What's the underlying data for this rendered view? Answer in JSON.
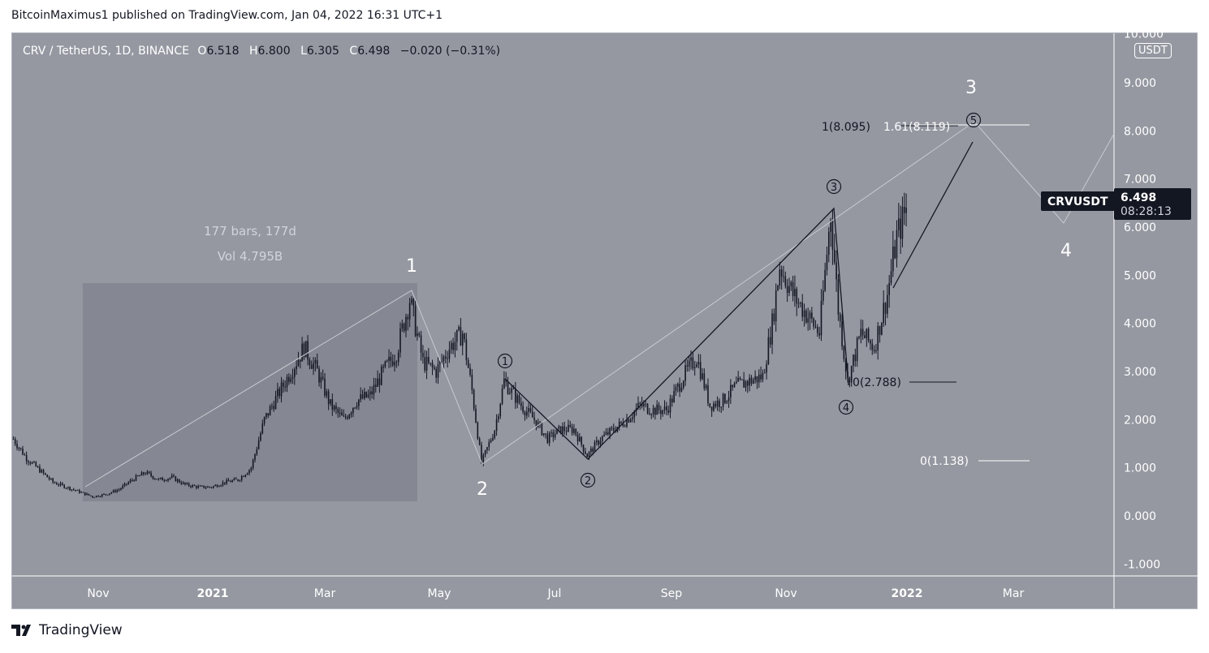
{
  "header": {
    "published": "BitcoinMaximus1 published on TradingView.com, Jan 04, 2022 16:31 UTC+1"
  },
  "legend": {
    "symbol": "CRV / TetherUS, 1D, BINANCE",
    "o_label": "O",
    "o": "6.518",
    "h_label": "H",
    "h": "6.800",
    "l_label": "L",
    "l": "6.305",
    "c_label": "C",
    "c": "6.498",
    "change": "−0.020 (−0.31%)"
  },
  "price_axis": {
    "currency": "USDT",
    "ticks": [
      "10.000",
      "9.000",
      "8.000",
      "7.000",
      "6.000",
      "5.000",
      "4.000",
      "3.000",
      "2.000",
      "1.000",
      "0.000",
      "-1.000"
    ]
  },
  "time_axis": {
    "ticks": [
      "Nov",
      "2021",
      "Mar",
      "May",
      "Jul",
      "Sep",
      "Nov",
      "2022",
      "Mar"
    ]
  },
  "last_price": {
    "symbol": "CRVUSDT",
    "price": "6.498",
    "countdown": "08:28:13",
    "color": "#131722"
  },
  "annotations": {
    "range_bars": "177 bars, 177d",
    "range_vol": "Vol 4.795B",
    "waves": [
      "1",
      "2",
      "3",
      "4"
    ],
    "subwaves": [
      "1",
      "2",
      "3",
      "4",
      "5"
    ],
    "fib_top_a": "1(8.095)",
    "fib_top_b": "1.61(8.119)",
    "fib_mid": "0(2.788)",
    "fib_low": "0(1.138)"
  },
  "footer": {
    "brand": "TradingView"
  },
  "chart_data": {
    "type": "candlestick",
    "title": "CRV / TetherUS, 1D, BINANCE",
    "ylim": [
      -1.4,
      10.1
    ],
    "grid": false,
    "background": "#9598a1",
    "candle_color": "#131722",
    "approx_closes": [
      [
        "2020-09-17",
        1.6
      ],
      [
        "2020-09-24",
        1.2
      ],
      [
        "2020-10-01",
        0.95
      ],
      [
        "2020-10-08",
        0.7
      ],
      [
        "2020-10-15",
        0.6
      ],
      [
        "2020-10-22",
        0.5
      ],
      [
        "2020-10-29",
        0.4
      ],
      [
        "2020-11-05",
        0.45
      ],
      [
        "2020-11-12",
        0.55
      ],
      [
        "2020-11-19",
        0.75
      ],
      [
        "2020-11-26",
        0.9
      ],
      [
        "2020-12-03",
        0.75
      ],
      [
        "2020-12-10",
        0.8
      ],
      [
        "2020-12-17",
        0.65
      ],
      [
        "2020-12-24",
        0.6
      ],
      [
        "2020-12-31",
        0.6
      ],
      [
        "2021-01-07",
        0.7
      ],
      [
        "2021-01-14",
        0.75
      ],
      [
        "2021-01-21",
        1.0
      ],
      [
        "2021-01-28",
        2.0
      ],
      [
        "2021-02-04",
        2.5
      ],
      [
        "2021-02-11",
        3.0
      ],
      [
        "2021-02-18",
        3.5
      ],
      [
        "2021-02-25",
        3.0
      ],
      [
        "2021-03-04",
        2.3
      ],
      [
        "2021-03-11",
        2.0
      ],
      [
        "2021-03-18",
        2.4
      ],
      [
        "2021-03-25",
        2.5
      ],
      [
        "2021-04-01",
        3.0
      ],
      [
        "2021-04-08",
        3.4
      ],
      [
        "2021-04-15",
        4.5
      ],
      [
        "2021-04-22",
        3.2
      ],
      [
        "2021-04-29",
        3.0
      ],
      [
        "2021-05-06",
        3.5
      ],
      [
        "2021-05-13",
        3.8
      ],
      [
        "2021-05-18",
        2.6
      ],
      [
        "2021-05-23",
        1.1
      ],
      [
        "2021-05-30",
        1.8
      ],
      [
        "2021-06-04",
        2.8
      ],
      [
        "2021-06-13",
        2.3
      ],
      [
        "2021-06-20",
        2.0
      ],
      [
        "2021-06-27",
        1.6
      ],
      [
        "2021-07-04",
        1.8
      ],
      [
        "2021-07-11",
        1.8
      ],
      [
        "2021-07-18",
        1.25
      ],
      [
        "2021-07-25",
        1.6
      ],
      [
        "2021-08-01",
        1.8
      ],
      [
        "2021-08-08",
        2.0
      ],
      [
        "2021-08-15",
        2.3
      ],
      [
        "2021-08-22",
        2.2
      ],
      [
        "2021-08-29",
        2.2
      ],
      [
        "2021-09-07",
        2.9
      ],
      [
        "2021-09-14",
        3.3
      ],
      [
        "2021-09-21",
        2.3
      ],
      [
        "2021-09-28",
        2.4
      ],
      [
        "2021-10-05",
        2.7
      ],
      [
        "2021-10-12",
        2.8
      ],
      [
        "2021-10-19",
        2.9
      ],
      [
        "2021-10-24",
        4.0
      ],
      [
        "2021-10-28",
        5.2
      ],
      [
        "2021-11-04",
        4.6
      ],
      [
        "2021-11-11",
        4.2
      ],
      [
        "2021-11-18",
        3.8
      ],
      [
        "2021-11-24",
        6.3
      ],
      [
        "2021-11-28",
        4.3
      ],
      [
        "2021-12-03",
        2.8
      ],
      [
        "2021-12-10",
        3.8
      ],
      [
        "2021-12-17",
        3.5
      ],
      [
        "2021-12-24",
        4.6
      ],
      [
        "2021-12-29",
        5.8
      ],
      [
        "2022-01-04",
        6.5
      ]
    ]
  }
}
